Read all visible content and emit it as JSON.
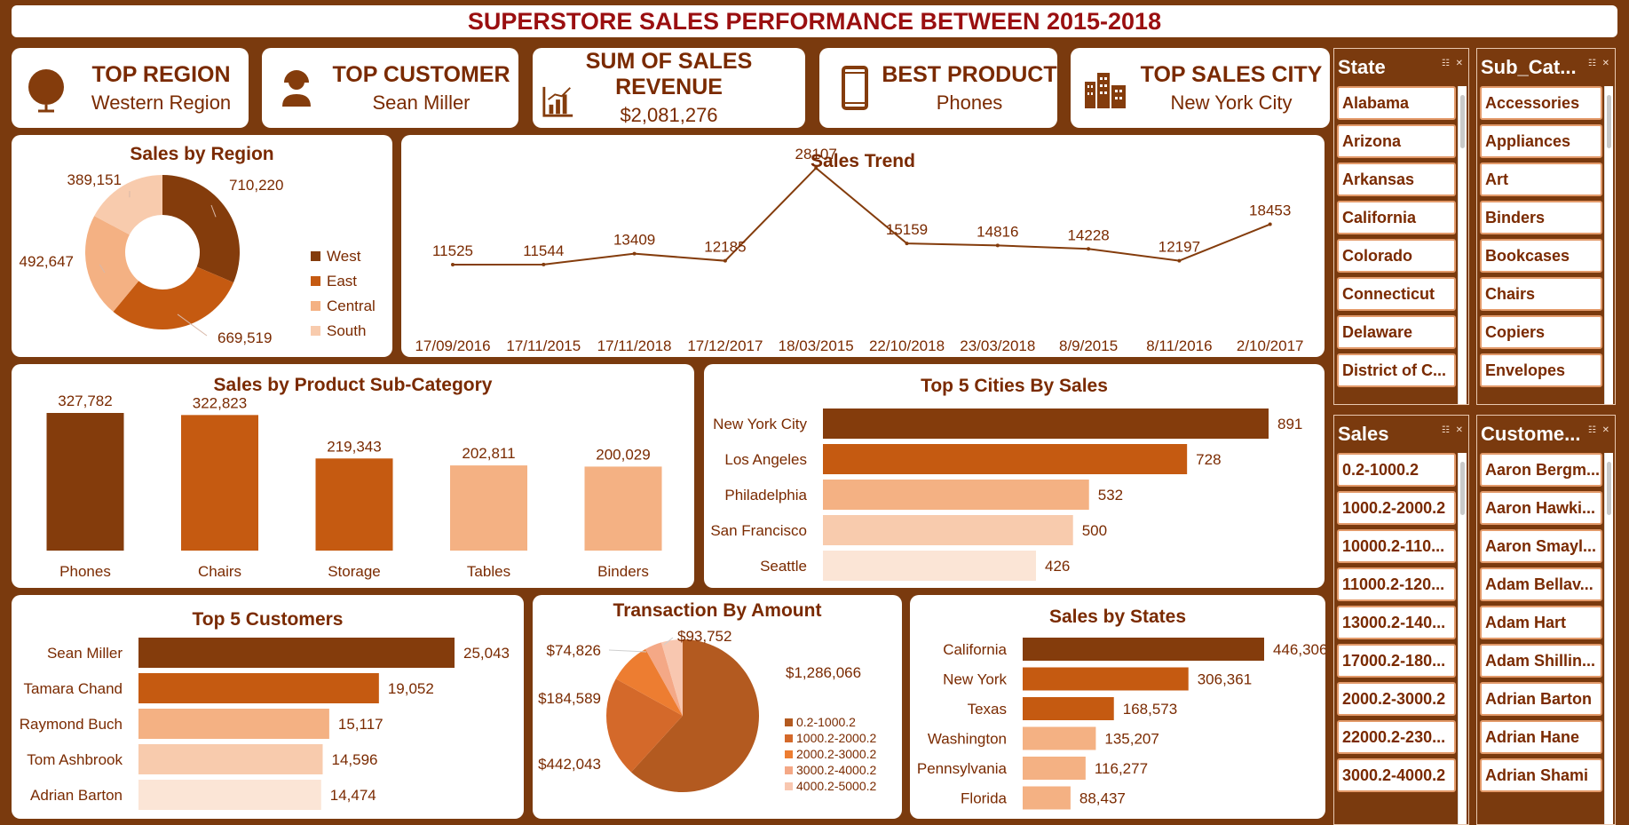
{
  "title": "SUPERSTORE SALES PERFORMANCE BETWEEN 2015-2018",
  "kpis": [
    {
      "label": "TOP REGION",
      "value": "Western Region",
      "icon": "globe-icon"
    },
    {
      "label": "TOP CUSTOMER",
      "value": "Sean Miller",
      "icon": "person-icon"
    },
    {
      "label": "SUM OF SALES REVENUE",
      "value": "$2,081,276",
      "icon": "bar-chart-icon"
    },
    {
      "label": "BEST PRODUCT",
      "value": "Phones",
      "icon": "phone-icon"
    },
    {
      "label": "TOP SALES CITY",
      "value": "New York City",
      "icon": "city-icon"
    }
  ],
  "colors": {
    "dark": "#843c0c",
    "mid": "#c55a11",
    "light": "#f4b183",
    "pale": "#f8cbad",
    "palest": "#fbe5d6",
    "title": "#9a0f10"
  },
  "chart_data": [
    {
      "type": "pie",
      "title": "Sales by Region",
      "categories": [
        "West",
        "East",
        "Central",
        "South"
      ],
      "values": [
        710220,
        669519,
        492647,
        389151
      ],
      "labels": [
        "710,220",
        "669,519",
        "492,647",
        "389,151"
      ],
      "legend": "right"
    },
    {
      "type": "line",
      "title": "Sales Trend",
      "x": [
        "17/09/2016",
        "17/11/2015",
        "17/11/2018",
        "17/12/2017",
        "18/03/2015",
        "22/10/2018",
        "23/03/2018",
        "8/9/2015",
        "8/11/2016",
        "2/10/2017"
      ],
      "values": [
        11525,
        11544,
        13409,
        12185,
        28107,
        15159,
        14816,
        14228,
        12197,
        18453
      ]
    },
    {
      "type": "bar",
      "title": "Sales by Product Sub-Category",
      "categories": [
        "Phones",
        "Chairs",
        "Storage",
        "Tables",
        "Binders"
      ],
      "values": [
        327782,
        322823,
        219343,
        202811,
        200029
      ],
      "labels": [
        "327,782",
        "322,823",
        "219,343",
        "202,811",
        "200,029"
      ]
    },
    {
      "type": "bar",
      "title": "Top 5 Cities By Sales",
      "categories": [
        "New York City",
        "Los Angeles",
        "Philadelphia",
        "San Francisco",
        "Seattle"
      ],
      "values": [
        891,
        728,
        532,
        500,
        426
      ],
      "labels": [
        "891",
        "728",
        "532",
        "500",
        "426"
      ]
    },
    {
      "type": "bar",
      "title": "Top 5 Customers",
      "categories": [
        "Sean Miller",
        "Tamara Chand",
        "Raymond Buch",
        "Tom Ashbrook",
        "Adrian Barton"
      ],
      "values": [
        25043,
        19052,
        15117,
        14596,
        14474
      ],
      "labels": [
        "25,043",
        "19,052",
        "15,117",
        "14,596",
        "14,474"
      ]
    },
    {
      "type": "pie",
      "title": "Transaction By Amount",
      "categories": [
        "0.2-1000.2",
        "1000.2-2000.2",
        "2000.2-3000.2",
        "3000.2-4000.2",
        "4000.2-5000.2"
      ],
      "values": [
        1286066,
        442043,
        184589,
        74826,
        93752
      ],
      "labels": [
        "$1,286,066",
        "$442,043",
        "$184,589",
        "$74,826",
        "$93,752"
      ],
      "legend": "right"
    },
    {
      "type": "bar",
      "title": "Sales by States",
      "categories": [
        "California",
        "New York",
        "Texas",
        "Washington",
        "Pennsylvania",
        "Florida"
      ],
      "values": [
        446306,
        306361,
        168573,
        135207,
        116277,
        88437
      ],
      "labels": [
        "446,306",
        "306,361",
        "168,573",
        "135,207",
        "116,277",
        "88,437"
      ]
    }
  ],
  "slicers": [
    {
      "title": "State",
      "items": [
        "Alabama",
        "Arizona",
        "Arkansas",
        "California",
        "Colorado",
        "Connecticut",
        "Delaware",
        "District of C..."
      ]
    },
    {
      "title": "Sub_Cat...",
      "items": [
        "Accessories",
        "Appliances",
        "Art",
        "Binders",
        "Bookcases",
        "Chairs",
        "Copiers",
        "Envelopes"
      ]
    },
    {
      "title": "Sales",
      "items": [
        "0.2-1000.2",
        "1000.2-2000.2",
        "10000.2-110...",
        "11000.2-120...",
        "13000.2-140...",
        "17000.2-180...",
        "2000.2-3000.2",
        "22000.2-230...",
        "3000.2-4000.2"
      ]
    },
    {
      "title": "Custome...",
      "items": [
        "Aaron Bergm...",
        "Aaron Hawki...",
        "Aaron Smayl...",
        "Adam Bellav...",
        "Adam Hart",
        "Adam Shillin...",
        "Adrian Barton",
        "Adrian Hane",
        "Adrian Shami"
      ]
    }
  ]
}
